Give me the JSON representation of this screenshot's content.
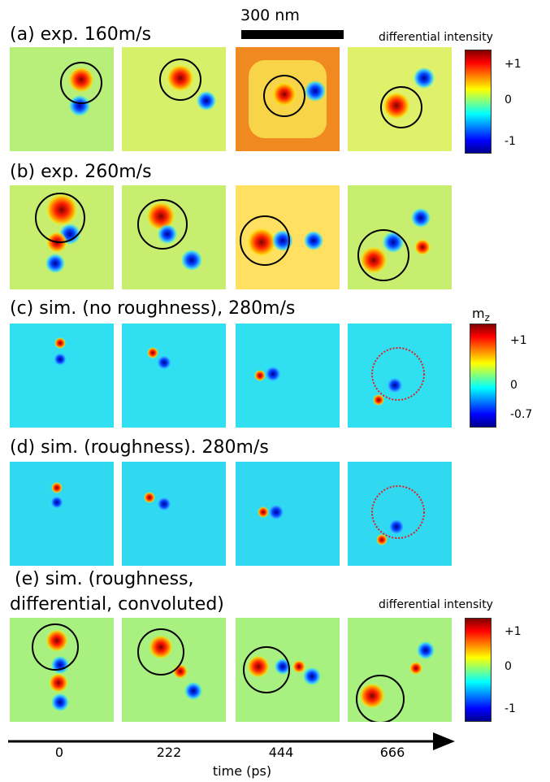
{
  "scale_bar_label": "300 nm",
  "rows": [
    {
      "label": "(a) exp. 160m/s"
    },
    {
      "label": "(b) exp. 260m/s"
    },
    {
      "label": "(c) sim. (no roughness), 280m/s"
    },
    {
      "label": "(d) sim. (roughness). 280m/s"
    },
    {
      "label_line1": "(e) sim.  (roughness,",
      "label_line2": "differential, convoluted)"
    }
  ],
  "colorbars": [
    {
      "title": "differential intensity",
      "ticks": [
        "+1",
        "0",
        "-1"
      ]
    },
    {
      "title": "m",
      "title_sub": "z",
      "ticks": [
        "+1",
        "0",
        "-0.7"
      ]
    },
    {
      "title": "differential intensity",
      "ticks": [
        "+1",
        "0",
        "-1"
      ]
    }
  ],
  "time_axis": {
    "label": "time (ps)",
    "ticks": [
      "0",
      "222",
      "444",
      "666"
    ]
  },
  "colors": {
    "jet_low": "#00008f",
    "jet_mid": "#7fff7f",
    "jet_high": "#800000",
    "marker_circle": "#000000",
    "dotted_circle": "#e02020"
  }
}
